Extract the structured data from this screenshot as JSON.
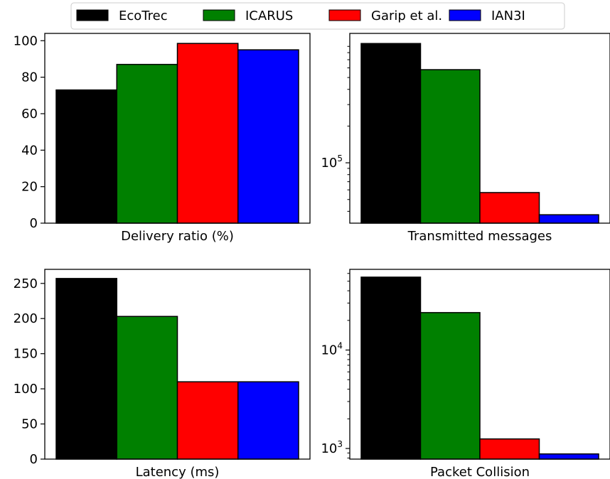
{
  "legend": {
    "placement": "top-center",
    "entries": [
      {
        "label": "EcoTrec",
        "color": "#000000"
      },
      {
        "label": "ICARUS",
        "color": "#008000"
      },
      {
        "label": "Garip et al.",
        "color": "#ff0000"
      },
      {
        "label": "IAN3I",
        "color": "#0000ff"
      }
    ]
  },
  "chart_data": [
    {
      "type": "bar",
      "xlabel": "Delivery ratio (%)",
      "categories": [
        "EcoTrec",
        "ICARUS",
        "Garip et al.",
        "IAN3I"
      ],
      "values": [
        73,
        87,
        98.5,
        95
      ],
      "scale": "linear",
      "ylim": [
        0,
        104
      ],
      "yticks": [
        0,
        20,
        40,
        60,
        80,
        100
      ],
      "ytick_labels": [
        "0",
        "20",
        "40",
        "60",
        "80",
        "100"
      ],
      "grid": false
    },
    {
      "type": "bar",
      "xlabel": "Transmitted messages",
      "categories": [
        "EcoTrec",
        "ICARUS",
        "Garip et al.",
        "IAN3I"
      ],
      "values": [
        950000,
        580000,
        57000,
        37500
      ],
      "scale": "log",
      "ylim": [
        32000,
        1150000
      ],
      "yticks": [
        100000
      ],
      "ytick_labels": [
        "10^5"
      ],
      "grid": false
    },
    {
      "type": "bar",
      "xlabel": "Latency (ms)",
      "categories": [
        "EcoTrec",
        "ICARUS",
        "Garip et al.",
        "IAN3I"
      ],
      "values": [
        257,
        203,
        110,
        110
      ],
      "scale": "linear",
      "ylim": [
        0,
        270
      ],
      "yticks": [
        0,
        50,
        100,
        150,
        200,
        250
      ],
      "ytick_labels": [
        "0",
        "50",
        "100",
        "150",
        "200",
        "250"
      ],
      "grid": false
    },
    {
      "type": "bar",
      "xlabel": "Packet Collision",
      "categories": [
        "EcoTrec",
        "ICARUS",
        "Garip et al.",
        "IAN3I"
      ],
      "values": [
        55000,
        24000,
        1250,
        880
      ],
      "scale": "log",
      "ylim": [
        780,
        66000
      ],
      "yticks": [
        1000,
        10000
      ],
      "ytick_labels": [
        "10^3",
        "10^4"
      ],
      "grid": false
    }
  ]
}
